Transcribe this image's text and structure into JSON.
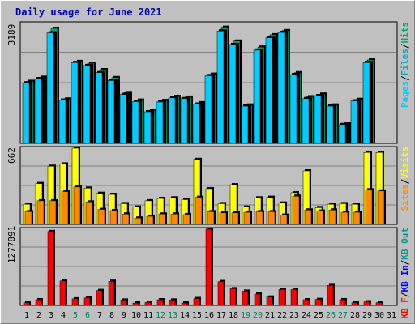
{
  "title": "Daily usage for June 2021",
  "colors": {
    "background": "#c0c0c0",
    "grid": "#808080",
    "hits": "#00ccff",
    "files": "#00aacc",
    "pages": "#00aa77",
    "visits": "#ffff00",
    "sites": "#ff8800",
    "kbin": "#0000ff",
    "kbout": "#009999",
    "kbf": "#ff0000",
    "title": "#0000aa",
    "day_weekday": "#000000",
    "day_weekend": "#00805a"
  },
  "chart_data": [
    {
      "type": "bar",
      "name": "hits-files-pages",
      "ymax_label": "3189",
      "ylim": [
        0,
        3189
      ],
      "legend": [
        "Pages",
        "Files",
        "Hits"
      ],
      "categories": [
        "1",
        "2",
        "3",
        "4",
        "5",
        "6",
        "7",
        "8",
        "9",
        "10",
        "11",
        "12",
        "13",
        "14",
        "15",
        "16",
        "17",
        "18",
        "19",
        "20",
        "21",
        "22",
        "23",
        "24",
        "25",
        "26",
        "27",
        "28",
        "29",
        "30",
        "31"
      ],
      "series": [
        {
          "name": "Pages",
          "values": [
            1650,
            1760,
            3060,
            1180,
            2180,
            2130,
            1960,
            1750,
            1350,
            1150,
            880,
            1140,
            1250,
            1230,
            1080,
            1840,
            3090,
            2720,
            1020,
            2560,
            2890,
            3000,
            1880,
            1240,
            1310,
            1020,
            520,
            1170,
            2220,
            0,
            0
          ]
        },
        {
          "name": "Files",
          "values": [
            1610,
            1720,
            2940,
            1150,
            2150,
            2070,
            1880,
            1670,
            1300,
            1110,
            840,
            1100,
            1210,
            1190,
            1040,
            1800,
            2990,
            2630,
            990,
            2480,
            2810,
            2950,
            1830,
            1190,
            1270,
            990,
            500,
            1130,
            2150,
            0,
            0
          ]
        },
        {
          "name": "Hits",
          "values": [
            1610,
            1720,
            2940,
            1150,
            2150,
            2070,
            1880,
            1670,
            1300,
            1110,
            840,
            1100,
            1210,
            1190,
            1040,
            1800,
            2990,
            2630,
            990,
            2480,
            2810,
            2950,
            1830,
            1190,
            1270,
            990,
            500,
            1130,
            2150,
            0,
            0
          ]
        }
      ]
    },
    {
      "type": "bar",
      "name": "sites-visits",
      "ymax_label": "662",
      "ylim": [
        0,
        662
      ],
      "legend": [
        "Sites",
        "Visits"
      ],
      "categories": [
        "1",
        "2",
        "3",
        "4",
        "5",
        "6",
        "7",
        "8",
        "9",
        "10",
        "11",
        "12",
        "13",
        "14",
        "15",
        "16",
        "17",
        "18",
        "19",
        "20",
        "21",
        "22",
        "23",
        "24",
        "25",
        "26",
        "27",
        "28",
        "29",
        "30",
        "31"
      ],
      "series": [
        {
          "name": "Visits",
          "values": [
            175,
            355,
            505,
            525,
            662,
            315,
            270,
            260,
            180,
            150,
            205,
            225,
            230,
            215,
            565,
            310,
            180,
            345,
            150,
            230,
            235,
            185,
            275,
            465,
            145,
            175,
            180,
            175,
            625,
            625,
            0
          ]
        },
        {
          "name": "Sites",
          "values": [
            110,
            205,
            205,
            285,
            325,
            195,
            130,
            120,
            90,
            55,
            70,
            90,
            90,
            85,
            235,
            110,
            100,
            100,
            105,
            110,
            110,
            80,
            245,
            125,
            115,
            125,
            105,
            105,
            300,
            290,
            0
          ]
        }
      ]
    },
    {
      "type": "bar",
      "name": "kbytes",
      "ymax_label": "1277891",
      "ylim": [
        0,
        1277891
      ],
      "legend": [
        "KB F",
        "KB In",
        "KB Out"
      ],
      "categories": [
        "1",
        "2",
        "3",
        "4",
        "5",
        "6",
        "7",
        "8",
        "9",
        "10",
        "11",
        "12",
        "13",
        "14",
        "15",
        "16",
        "17",
        "18",
        "19",
        "20",
        "21",
        "22",
        "23",
        "24",
        "25",
        "26",
        "27",
        "28",
        "29",
        "30",
        "31"
      ],
      "series": [
        {
          "name": "KB F",
          "values": [
            45000,
            95000,
            1240000,
            410000,
            110000,
            125000,
            250000,
            405000,
            90000,
            40000,
            50000,
            95000,
            90000,
            40000,
            115000,
            1277891,
            400000,
            280000,
            240000,
            190000,
            140000,
            265000,
            265000,
            95000,
            100000,
            335000,
            95000,
            45000,
            60000,
            45000,
            0
          ]
        }
      ]
    }
  ],
  "days": [
    {
      "label": "1",
      "weekend": false
    },
    {
      "label": "2",
      "weekend": false
    },
    {
      "label": "3",
      "weekend": false
    },
    {
      "label": "4",
      "weekend": false
    },
    {
      "label": "5",
      "weekend": true
    },
    {
      "label": "6",
      "weekend": true
    },
    {
      "label": "7",
      "weekend": false
    },
    {
      "label": "8",
      "weekend": false
    },
    {
      "label": "9",
      "weekend": false
    },
    {
      "label": "10",
      "weekend": false
    },
    {
      "label": "11",
      "weekend": false
    },
    {
      "label": "12",
      "weekend": true
    },
    {
      "label": "13",
      "weekend": true
    },
    {
      "label": "14",
      "weekend": false
    },
    {
      "label": "15",
      "weekend": false
    },
    {
      "label": "16",
      "weekend": false
    },
    {
      "label": "17",
      "weekend": false
    },
    {
      "label": "18",
      "weekend": false
    },
    {
      "label": "19",
      "weekend": true
    },
    {
      "label": "20",
      "weekend": true
    },
    {
      "label": "21",
      "weekend": false
    },
    {
      "label": "22",
      "weekend": false
    },
    {
      "label": "23",
      "weekend": false
    },
    {
      "label": "24",
      "weekend": false
    },
    {
      "label": "25",
      "weekend": false
    },
    {
      "label": "26",
      "weekend": true
    },
    {
      "label": "27",
      "weekend": true
    },
    {
      "label": "28",
      "weekend": false
    },
    {
      "label": "29",
      "weekend": false
    },
    {
      "label": "30",
      "weekend": false
    },
    {
      "label": "31",
      "weekend": false
    }
  ]
}
